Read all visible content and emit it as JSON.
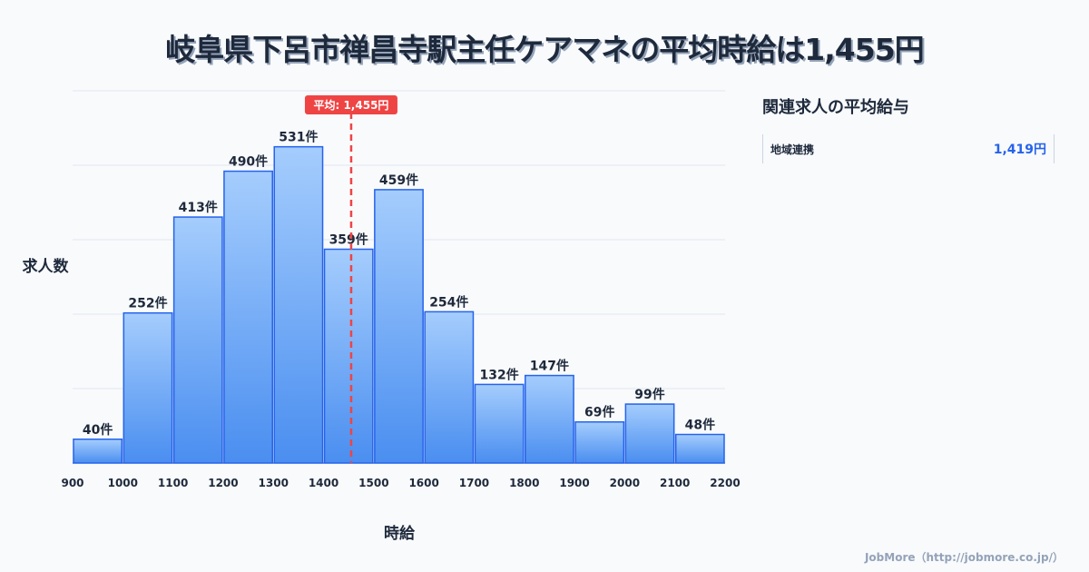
{
  "title": "岐阜県下呂市禅昌寺駅主任ケアマネの平均時給は1,455円",
  "side": {
    "title": "関連求人の平均給与",
    "items": [
      {
        "name": "地域連携",
        "value": "1,419円"
      }
    ]
  },
  "credit": "JobMore（http://jobmore.co.jp/）",
  "colors": {
    "bar_top": "#a5cdfd",
    "bar_bottom": "#4a8ef0",
    "bar_stroke": "#2563eb",
    "avg": "#ef4444"
  },
  "chart_data": {
    "type": "bar",
    "xlabel": "時給",
    "ylabel": "求人数",
    "bin_edges": [
      900,
      1000,
      1100,
      1200,
      1300,
      1400,
      1500,
      1600,
      1700,
      1800,
      1900,
      2000,
      2100,
      2200
    ],
    "values": [
      40,
      252,
      413,
      490,
      531,
      359,
      459,
      254,
      132,
      147,
      69,
      99,
      48
    ],
    "value_suffix": "件",
    "xlim": [
      900,
      2200
    ],
    "ylim": [
      0,
      625
    ],
    "grid": true,
    "average": {
      "value": 1455,
      "label": "平均: 1,455円"
    }
  }
}
